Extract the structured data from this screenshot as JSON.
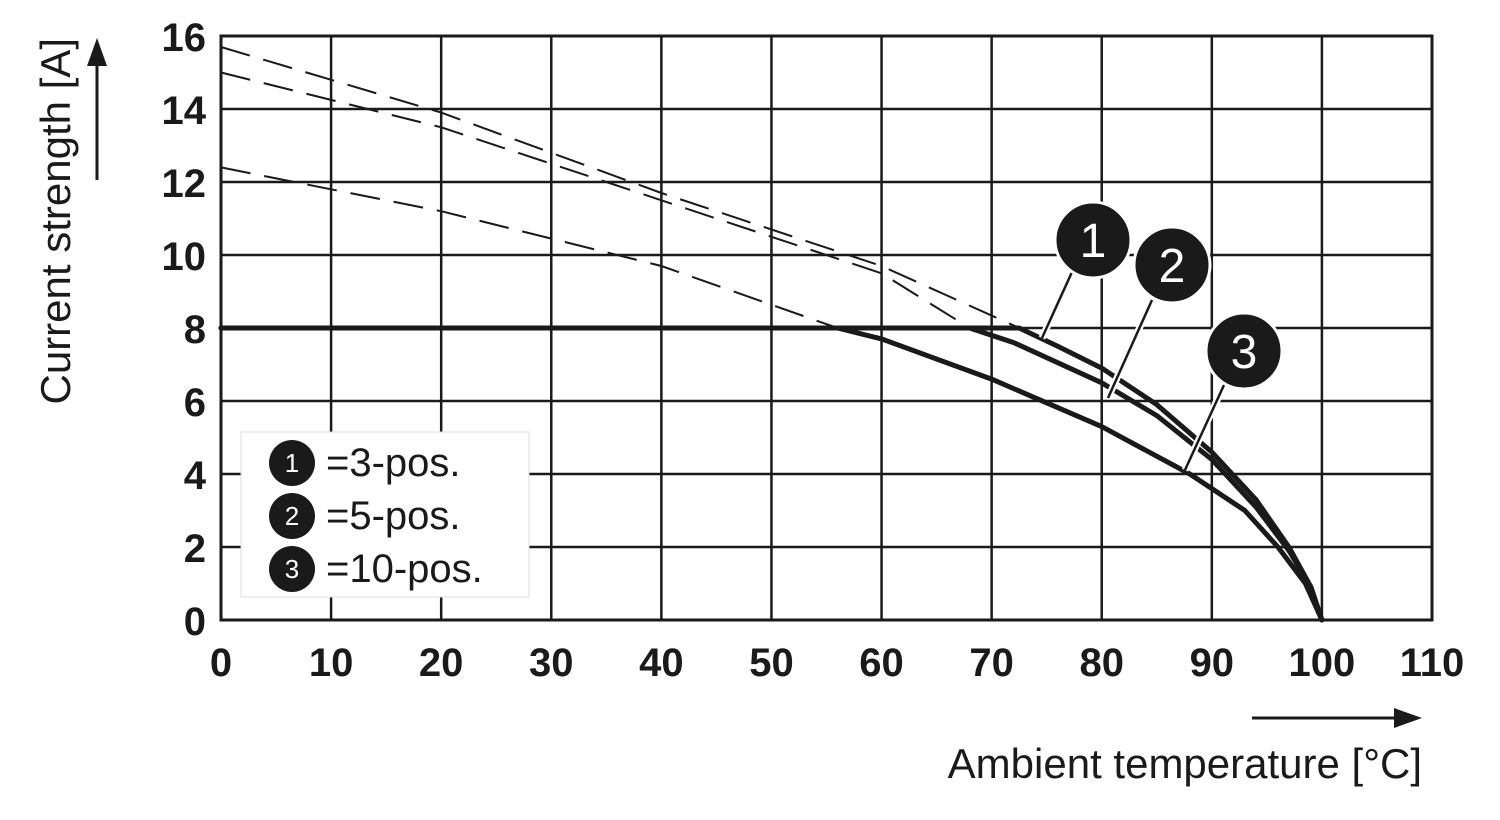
{
  "chart_data": {
    "type": "line",
    "xlabel": "Ambient temperature [°C]",
    "ylabel": "Current strength [A]",
    "xlim": [
      0,
      110
    ],
    "ylim": [
      0,
      16
    ],
    "xticks": [
      "0",
      "10",
      "20",
      "30",
      "40",
      "50",
      "60",
      "70",
      "80",
      "90",
      "100",
      "110"
    ],
    "yticks": [
      "0",
      "2",
      "4",
      "6",
      "8",
      "10",
      "12",
      "14",
      "16"
    ],
    "grid": true,
    "colors": {
      "line": "#1a1a1a",
      "grid": "#1a1a1a",
      "marker_fill": "#1a1a1a",
      "marker_text": "#ffffff"
    },
    "series": [
      {
        "marker": "1",
        "legend": "=3-pos.",
        "solid": [
          [
            0,
            8
          ],
          [
            72.5,
            8
          ],
          [
            76,
            7.5
          ],
          [
            80,
            6.9
          ],
          [
            85,
            5.9
          ],
          [
            90,
            4.6
          ],
          [
            94,
            3.3
          ],
          [
            97,
            2.0
          ],
          [
            99,
            0.9
          ],
          [
            100,
            0
          ]
        ],
        "extrapolated": [
          [
            0,
            15.7
          ],
          [
            20,
            13.9
          ],
          [
            40,
            11.7
          ],
          [
            60,
            9.7
          ],
          [
            72.5,
            8
          ]
        ]
      },
      {
        "marker": "2",
        "legend": "=5-pos.",
        "solid": [
          [
            0,
            8
          ],
          [
            68,
            8
          ],
          [
            72,
            7.6
          ],
          [
            80,
            6.5
          ],
          [
            85,
            5.6
          ],
          [
            90,
            4.4
          ],
          [
            94,
            3.1
          ],
          [
            97,
            1.9
          ],
          [
            99,
            0.9
          ],
          [
            100,
            0
          ]
        ],
        "extrapolated": [
          [
            0,
            15.0
          ],
          [
            20,
            13.5
          ],
          [
            40,
            11.5
          ],
          [
            60,
            9.5
          ],
          [
            68,
            8
          ]
        ]
      },
      {
        "marker": "3",
        "legend": "=10-pos.",
        "solid": [
          [
            0,
            8
          ],
          [
            56,
            8
          ],
          [
            60,
            7.7
          ],
          [
            70,
            6.6
          ],
          [
            80,
            5.3
          ],
          [
            88,
            4.0
          ],
          [
            93,
            3.0
          ],
          [
            96,
            2.0
          ],
          [
            98.5,
            1.0
          ],
          [
            100,
            0
          ]
        ],
        "extrapolated": [
          [
            0,
            12.4
          ],
          [
            20,
            11.2
          ],
          [
            40,
            9.7
          ],
          [
            56,
            8
          ]
        ]
      }
    ]
  }
}
